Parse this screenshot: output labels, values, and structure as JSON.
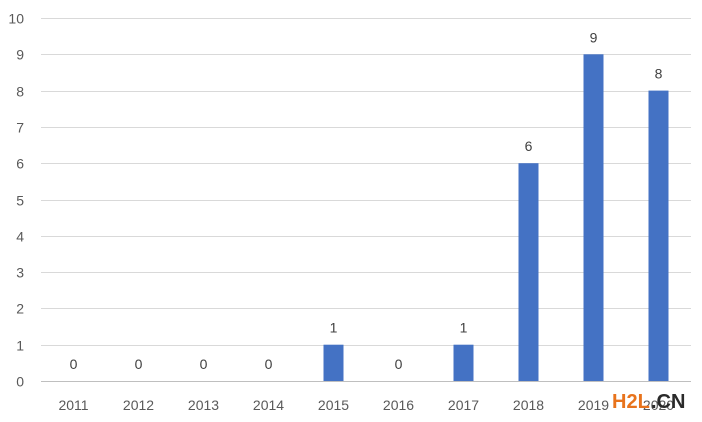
{
  "chart_data": {
    "type": "bar",
    "categories": [
      "2011",
      "2012",
      "2013",
      "2014",
      "2015",
      "2016",
      "2017",
      "2018",
      "2019",
      "2020"
    ],
    "values": [
      0,
      0,
      0,
      0,
      1,
      0,
      1,
      6,
      9,
      8
    ],
    "title": "",
    "xlabel": "",
    "ylabel": "",
    "ylim": [
      0,
      10
    ],
    "yticks": [
      "0",
      "1",
      "2",
      "3",
      "4",
      "5",
      "6",
      "7",
      "8",
      "9",
      "10"
    ],
    "grid": true,
    "legend": "none",
    "bar_color": "#4472c4",
    "data_labels": true
  },
  "watermark": {
    "part1": "H2L",
    "part2": ".CN"
  }
}
